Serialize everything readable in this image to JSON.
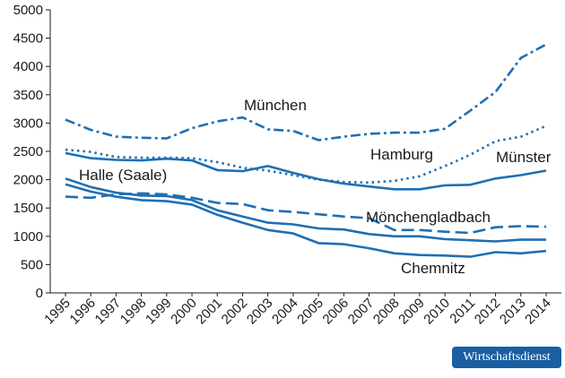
{
  "chart_data": {
    "type": "line",
    "x": [
      "1995",
      "1996",
      "1997",
      "1998",
      "1999",
      "2000",
      "2001",
      "2002",
      "2003",
      "2004",
      "2005",
      "2006",
      "2007",
      "2008",
      "2009",
      "2010",
      "2011",
      "2012",
      "2013",
      "2014"
    ],
    "ylim": [
      0,
      5000
    ],
    "yticks": [
      "0",
      "500",
      "1000",
      "1500",
      "2000",
      "2500",
      "3000",
      "3500",
      "4000",
      "4500",
      "5000"
    ],
    "color": "#1e6fb4",
    "series": [
      {
        "name": "München",
        "style": "dashdot",
        "values": [
          3060,
          2880,
          2760,
          2740,
          2730,
          2910,
          3030,
          3100,
          2890,
          2860,
          2700,
          2760,
          2810,
          2830,
          2830,
          2900,
          3220,
          3550,
          4150,
          4390
        ]
      },
      {
        "name": "Münster",
        "style": "dotted",
        "values": [
          2530,
          2490,
          2400,
          2390,
          2390,
          2380,
          2310,
          2210,
          2160,
          2080,
          2000,
          1960,
          1950,
          1980,
          2060,
          2240,
          2440,
          2680,
          2760,
          2950
        ]
      },
      {
        "name": "Hamburg",
        "style": "solid",
        "values": [
          2470,
          2380,
          2350,
          2340,
          2370,
          2340,
          2170,
          2150,
          2240,
          2120,
          2010,
          1930,
          1880,
          1830,
          1830,
          1900,
          1910,
          2020,
          2080,
          2160
        ]
      },
      {
        "name": "Mönchengladbach",
        "style": "dashed",
        "values": [
          1700,
          1680,
          1740,
          1760,
          1740,
          1680,
          1590,
          1570,
          1460,
          1430,
          1390,
          1350,
          1320,
          1110,
          1110,
          1080,
          1060,
          1160,
          1180,
          1170
        ]
      },
      {
        "name": "Halle (Saale)",
        "style": "solid",
        "values": [
          2020,
          1870,
          1770,
          1720,
          1710,
          1640,
          1460,
          1350,
          1240,
          1210,
          1140,
          1120,
          1040,
          1000,
          1000,
          950,
          930,
          910,
          940,
          940
        ]
      },
      {
        "name": "Chemnitz",
        "style": "solid",
        "values": [
          1920,
          1790,
          1700,
          1640,
          1620,
          1560,
          1380,
          1240,
          1110,
          1050,
          880,
          860,
          790,
          700,
          670,
          660,
          640,
          720,
          700,
          740
        ]
      }
    ],
    "annotations": [
      "München",
      "Hamburg",
      "Münster",
      "Halle (Saale)",
      "Mönchengladbach",
      "Chemnitz"
    ]
  },
  "brand": {
    "label": "Wirtschaftsdienst",
    "color": "#1a5ea3"
  }
}
